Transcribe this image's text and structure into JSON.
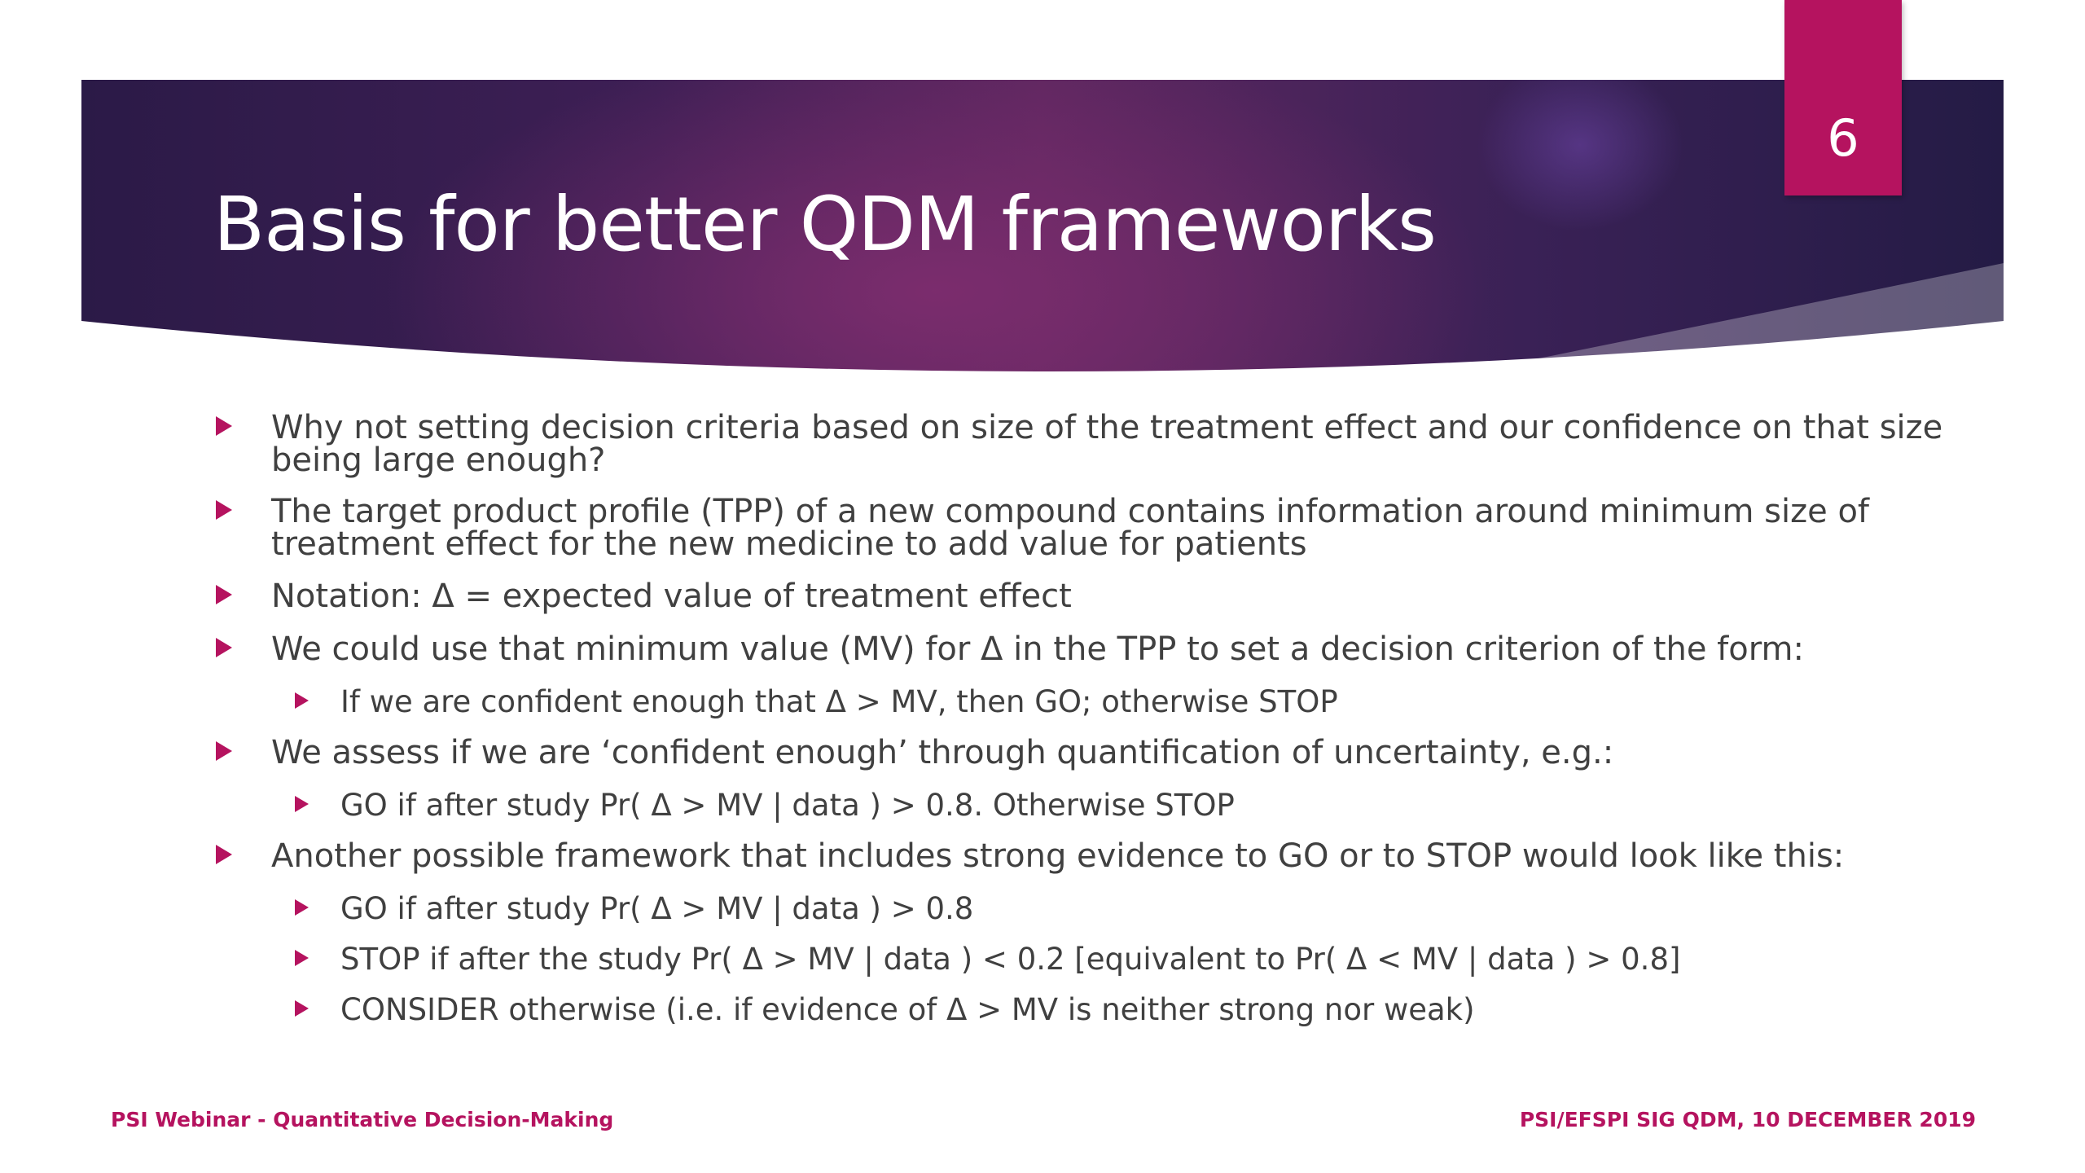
{
  "slide": {
    "number": "6",
    "title": "Basis for better QDM frameworks"
  },
  "bullets": [
    {
      "level": 1,
      "text": "Why not setting decision criteria based on size of the treatment effect and our confidence on that size being large enough?"
    },
    {
      "level": 1,
      "text": "The target product profile (TPP) of a new compound contains information around minimum size of treatment effect for the new medicine to add value for patients"
    },
    {
      "level": 1,
      "text": "Notation: Δ = expected value of treatment effect"
    },
    {
      "level": 1,
      "text": "We could use that minimum value (MV) for Δ in the TPP to set a decision criterion of the form:"
    },
    {
      "level": 2,
      "text": "If we are confident enough that Δ > MV, then GO; otherwise STOP"
    },
    {
      "level": 1,
      "text": "We assess if we are ‘confident enough’ through quantification of uncertainty, e.g.:"
    },
    {
      "level": 2,
      "text": "GO if after study Pr( Δ > MV | data ) > 0.8. Otherwise STOP"
    },
    {
      "level": 1,
      "text": "Another possible framework that includes strong evidence to GO or to STOP would look like this:"
    },
    {
      "level": 2,
      "text": "GO if after study Pr( Δ > MV | data ) > 0.8"
    },
    {
      "level": 2,
      "text": "STOP if after the study Pr( Δ > MV | data ) < 0.2 [equivalent to Pr( Δ < MV | data ) > 0.8]"
    },
    {
      "level": 2,
      "text": "CONSIDER otherwise (i.e. if evidence of Δ > MV is neither strong nor weak)"
    }
  ],
  "footer": {
    "left": "PSI Webinar - Quantitative Decision-Making",
    "right": "PSI/EFSPI SIG QDM, 10 DECEMBER 2019"
  },
  "colors": {
    "accent": "#b5135f",
    "banner_dark": "#2b1a47",
    "banner_mid": "#5e2760",
    "text": "#404040"
  }
}
